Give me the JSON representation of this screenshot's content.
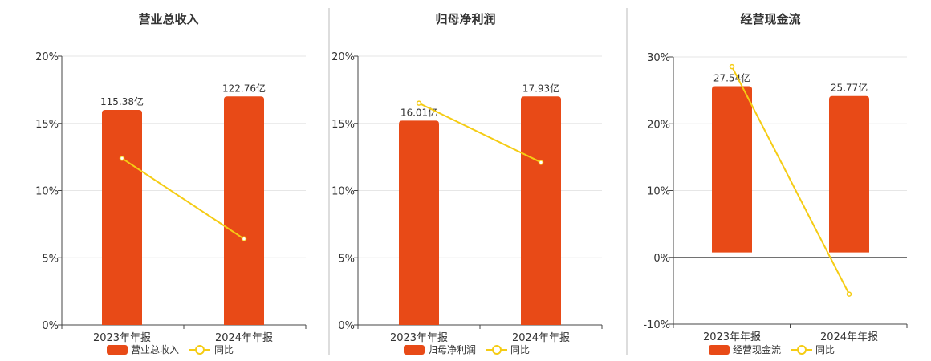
{
  "colors": {
    "bar": "#E84A17",
    "line": "#F5CC14",
    "grid": "#E6E6E6",
    "axis": "#444444",
    "divider": "#BBBBBB",
    "text": "#333333"
  },
  "chart_data": [
    {
      "type": "bar",
      "title": "营业总收入",
      "categories": [
        "2023年年报",
        "2024年年报"
      ],
      "yticks": [
        "0%",
        "5%",
        "10%",
        "15%",
        "20%"
      ],
      "ylim": [
        0,
        20
      ],
      "grid": true,
      "legend_position": "bottom",
      "series": [
        {
          "name": "营业总收入",
          "kind": "bar",
          "bar_heights": [
            16,
            17
          ],
          "labels": [
            "115.38亿",
            "122.76亿"
          ]
        },
        {
          "name": "同比",
          "kind": "line",
          "values": [
            12.4,
            6.4
          ]
        }
      ]
    },
    {
      "type": "bar",
      "title": "归母净利润",
      "categories": [
        "2023年年报",
        "2024年年报"
      ],
      "yticks": [
        "0%",
        "5%",
        "10%",
        "15%",
        "20%"
      ],
      "ylim": [
        0,
        20
      ],
      "grid": true,
      "legend_position": "bottom",
      "series": [
        {
          "name": "归母净利润",
          "kind": "bar",
          "bar_heights": [
            15.2,
            17
          ],
          "labels": [
            "16.01亿",
            "17.93亿"
          ]
        },
        {
          "name": "同比",
          "kind": "line",
          "values": [
            16.5,
            12.1
          ]
        }
      ]
    },
    {
      "type": "bar",
      "title": "经营现金流",
      "categories": [
        "2023年年报",
        "2024年年报"
      ],
      "yticks": [
        "-10%",
        "0%",
        "10%",
        "20%",
        "30%"
      ],
      "ylim": [
        -11,
        30
      ],
      "grid": true,
      "legend_position": "bottom",
      "series": [
        {
          "name": "经营现金流",
          "kind": "bar",
          "bar_heights": [
            25.5,
            24
          ],
          "labels": [
            "27.54亿",
            "25.77亿"
          ]
        },
        {
          "name": "同比",
          "kind": "line",
          "values": [
            28.5,
            -6.4
          ]
        }
      ]
    }
  ]
}
